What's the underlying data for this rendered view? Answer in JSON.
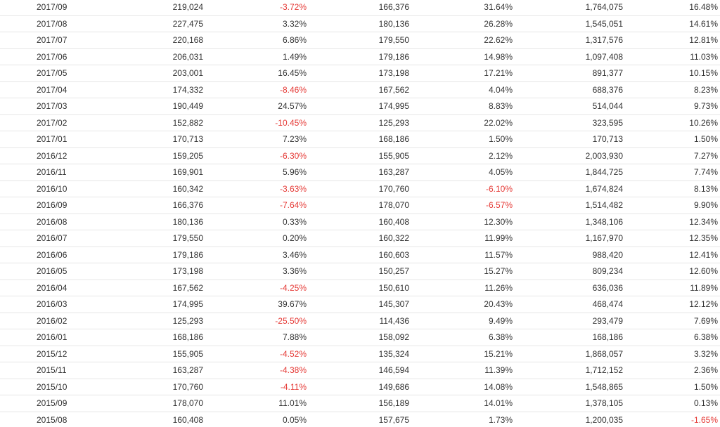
{
  "table": {
    "rows": [
      {
        "month": "2017/09",
        "v1": "219,024",
        "p1": "-3.72%",
        "v2": "166,376",
        "p2": "31.64%",
        "v3": "1,764,075",
        "p3": "16.48%"
      },
      {
        "month": "2017/08",
        "v1": "227,475",
        "p1": "3.32%",
        "v2": "180,136",
        "p2": "26.28%",
        "v3": "1,545,051",
        "p3": "14.61%"
      },
      {
        "month": "2017/07",
        "v1": "220,168",
        "p1": "6.86%",
        "v2": "179,550",
        "p2": "22.62%",
        "v3": "1,317,576",
        "p3": "12.81%"
      },
      {
        "month": "2017/06",
        "v1": "206,031",
        "p1": "1.49%",
        "v2": "179,186",
        "p2": "14.98%",
        "v3": "1,097,408",
        "p3": "11.03%"
      },
      {
        "month": "2017/05",
        "v1": "203,001",
        "p1": "16.45%",
        "v2": "173,198",
        "p2": "17.21%",
        "v3": "891,377",
        "p3": "10.15%"
      },
      {
        "month": "2017/04",
        "v1": "174,332",
        "p1": "-8.46%",
        "v2": "167,562",
        "p2": "4.04%",
        "v3": "688,376",
        "p3": "8.23%"
      },
      {
        "month": "2017/03",
        "v1": "190,449",
        "p1": "24.57%",
        "v2": "174,995",
        "p2": "8.83%",
        "v3": "514,044",
        "p3": "9.73%"
      },
      {
        "month": "2017/02",
        "v1": "152,882",
        "p1": "-10.45%",
        "v2": "125,293",
        "p2": "22.02%",
        "v3": "323,595",
        "p3": "10.26%"
      },
      {
        "month": "2017/01",
        "v1": "170,713",
        "p1": "7.23%",
        "v2": "168,186",
        "p2": "1.50%",
        "v3": "170,713",
        "p3": "1.50%"
      },
      {
        "month": "2016/12",
        "v1": "159,205",
        "p1": "-6.30%",
        "v2": "155,905",
        "p2": "2.12%",
        "v3": "2,003,930",
        "p3": "7.27%"
      },
      {
        "month": "2016/11",
        "v1": "169,901",
        "p1": "5.96%",
        "v2": "163,287",
        "p2": "4.05%",
        "v3": "1,844,725",
        "p3": "7.74%"
      },
      {
        "month": "2016/10",
        "v1": "160,342",
        "p1": "-3.63%",
        "v2": "170,760",
        "p2": "-6.10%",
        "v3": "1,674,824",
        "p3": "8.13%"
      },
      {
        "month": "2016/09",
        "v1": "166,376",
        "p1": "-7.64%",
        "v2": "178,070",
        "p2": "-6.57%",
        "v3": "1,514,482",
        "p3": "9.90%"
      },
      {
        "month": "2016/08",
        "v1": "180,136",
        "p1": "0.33%",
        "v2": "160,408",
        "p2": "12.30%",
        "v3": "1,348,106",
        "p3": "12.34%"
      },
      {
        "month": "2016/07",
        "v1": "179,550",
        "p1": "0.20%",
        "v2": "160,322",
        "p2": "11.99%",
        "v3": "1,167,970",
        "p3": "12.35%"
      },
      {
        "month": "2016/06",
        "v1": "179,186",
        "p1": "3.46%",
        "v2": "160,603",
        "p2": "11.57%",
        "v3": "988,420",
        "p3": "12.41%"
      },
      {
        "month": "2016/05",
        "v1": "173,198",
        "p1": "3.36%",
        "v2": "150,257",
        "p2": "15.27%",
        "v3": "809,234",
        "p3": "12.60%"
      },
      {
        "month": "2016/04",
        "v1": "167,562",
        "p1": "-4.25%",
        "v2": "150,610",
        "p2": "11.26%",
        "v3": "636,036",
        "p3": "11.89%"
      },
      {
        "month": "2016/03",
        "v1": "174,995",
        "p1": "39.67%",
        "v2": "145,307",
        "p2": "20.43%",
        "v3": "468,474",
        "p3": "12.12%"
      },
      {
        "month": "2016/02",
        "v1": "125,293",
        "p1": "-25.50%",
        "v2": "114,436",
        "p2": "9.49%",
        "v3": "293,479",
        "p3": "7.69%"
      },
      {
        "month": "2016/01",
        "v1": "168,186",
        "p1": "7.88%",
        "v2": "158,092",
        "p2": "6.38%",
        "v3": "168,186",
        "p3": "6.38%"
      },
      {
        "month": "2015/12",
        "v1": "155,905",
        "p1": "-4.52%",
        "v2": "135,324",
        "p2": "15.21%",
        "v3": "1,868,057",
        "p3": "3.32%"
      },
      {
        "month": "2015/11",
        "v1": "163,287",
        "p1": "-4.38%",
        "v2": "146,594",
        "p2": "11.39%",
        "v3": "1,712,152",
        "p3": "2.36%"
      },
      {
        "month": "2015/10",
        "v1": "170,760",
        "p1": "-4.11%",
        "v2": "149,686",
        "p2": "14.08%",
        "v3": "1,548,865",
        "p3": "1.50%"
      },
      {
        "month": "2015/09",
        "v1": "178,070",
        "p1": "11.01%",
        "v2": "156,189",
        "p2": "14.01%",
        "v3": "1,378,105",
        "p3": "0.13%"
      },
      {
        "month": "2015/08",
        "v1": "160,408",
        "p1": "0.05%",
        "v2": "157,675",
        "p2": "1.73%",
        "v3": "1,200,035",
        "p3": "-1.65%"
      }
    ]
  },
  "colors": {
    "negative": "#e53935",
    "text": "#333333",
    "row_border": "#e6e6e6"
  }
}
